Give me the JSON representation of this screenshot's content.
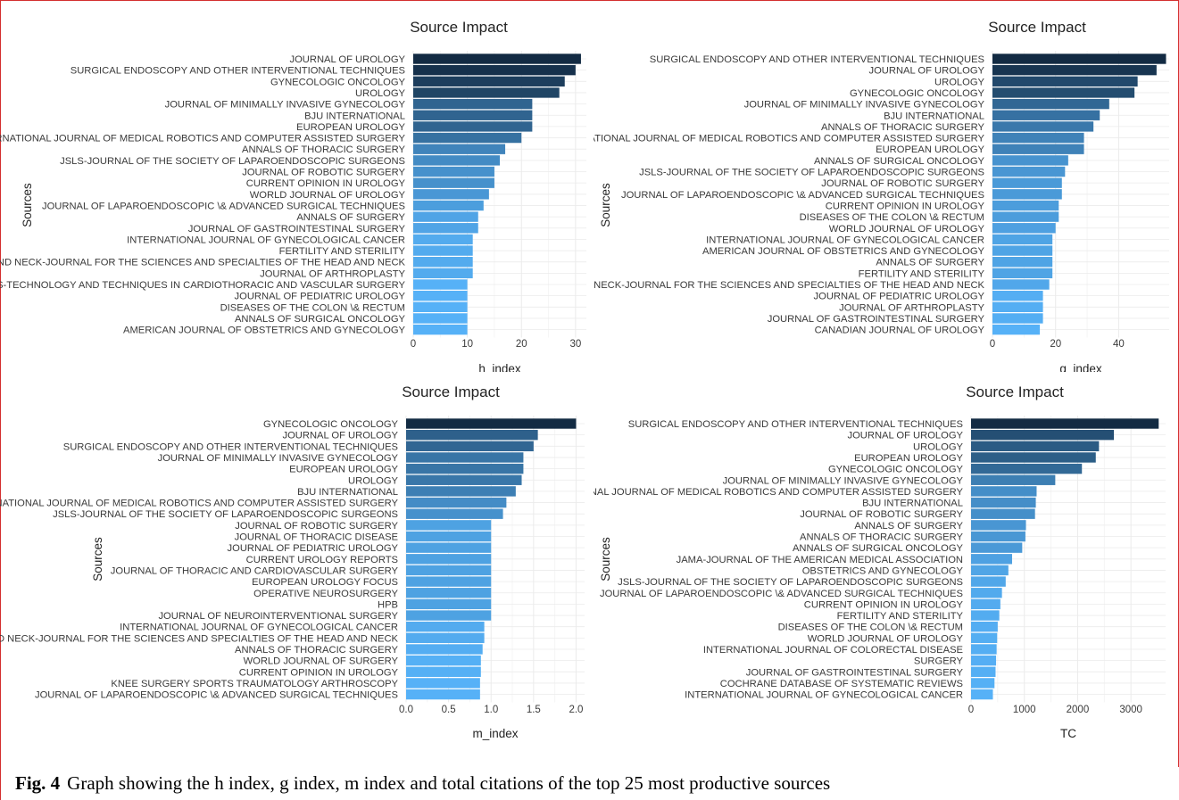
{
  "caption": {
    "label": "Fig. 4",
    "text": "Graph showing the h index, g index, m index and total citations of the top 25 most productive sources"
  },
  "colors": {
    "high": "#132b43",
    "low": "#56b1f7",
    "grid": "#ebebeb",
    "text": "#3a3a3a"
  },
  "chart_data": [
    {
      "type": "bar",
      "orientation": "horizontal",
      "title": "Source Impact",
      "xlabel": "h_index",
      "ylabel": "Sources",
      "xlim": [
        0,
        32
      ],
      "xticks": [
        0,
        10,
        20,
        30
      ],
      "grid": true,
      "categories": [
        "JOURNAL OF UROLOGY",
        "SURGICAL ENDOSCOPY AND OTHER INTERVENTIONAL TECHNIQUES",
        "GYNECOLOGIC ONCOLOGY",
        "UROLOGY",
        "JOURNAL OF MINIMALLY INVASIVE GYNECOLOGY",
        "BJU INTERNATIONAL",
        "EUROPEAN UROLOGY",
        "INTERNATIONAL JOURNAL OF MEDICAL ROBOTICS AND COMPUTER ASSISTED SURGERY",
        "ANNALS OF THORACIC SURGERY",
        "JSLS-JOURNAL OF THE SOCIETY OF LAPAROENDOSCOPIC SURGEONS",
        "JOURNAL OF ROBOTIC SURGERY",
        "CURRENT OPINION IN UROLOGY",
        "WORLD JOURNAL OF UROLOGY",
        "JOURNAL OF LAPAROENDOSCOPIC \\& ADVANCED SURGICAL TECHNIQUES",
        "ANNALS OF SURGERY",
        "JOURNAL OF GASTROINTESTINAL SURGERY",
        "INTERNATIONAL JOURNAL OF GYNECOLOGICAL CANCER",
        "FERTILITY AND STERILITY",
        "HEAD AND NECK-JOURNAL FOR THE SCIENCES AND SPECIALTIES OF THE HEAD AND NECK",
        "JOURNAL OF ARTHROPLASTY",
        "INNOVATIONS-TECHNOLOGY AND TECHNIQUES IN CARDIOTHORACIC AND VASCULAR SURGERY",
        "JOURNAL OF PEDIATRIC UROLOGY",
        "DISEASES OF THE COLON \\& RECTUM",
        "ANNALS OF SURGICAL ONCOLOGY",
        "AMERICAN JOURNAL OF OBSTETRICS AND GYNECOLOGY"
      ],
      "values": [
        31,
        30,
        28,
        27,
        22,
        22,
        22,
        20,
        17,
        16,
        15,
        15,
        14,
        13,
        12,
        12,
        11,
        11,
        11,
        11,
        10,
        10,
        10,
        10,
        10
      ]
    },
    {
      "type": "bar",
      "orientation": "horizontal",
      "title": "Source Impact",
      "xlabel": "g_index",
      "ylabel": "Sources",
      "xlim": [
        0,
        56
      ],
      "xticks": [
        0,
        20,
        40
      ],
      "grid": true,
      "categories": [
        "SURGICAL ENDOSCOPY AND OTHER INTERVENTIONAL TECHNIQUES",
        "JOURNAL OF UROLOGY",
        "UROLOGY",
        "GYNECOLOGIC ONCOLOGY",
        "JOURNAL OF MINIMALLY INVASIVE GYNECOLOGY",
        "BJU INTERNATIONAL",
        "ANNALS OF THORACIC SURGERY",
        "INTERNATIONAL JOURNAL OF MEDICAL ROBOTICS AND COMPUTER ASSISTED SURGERY",
        "EUROPEAN UROLOGY",
        "ANNALS OF SURGICAL ONCOLOGY",
        "JSLS-JOURNAL OF THE SOCIETY OF LAPAROENDOSCOPIC SURGEONS",
        "JOURNAL OF ROBOTIC SURGERY",
        "JOURNAL OF LAPAROENDOSCOPIC \\& ADVANCED SURGICAL TECHNIQUES",
        "CURRENT OPINION IN UROLOGY",
        "DISEASES OF THE COLON \\& RECTUM",
        "WORLD JOURNAL OF UROLOGY",
        "INTERNATIONAL JOURNAL OF GYNECOLOGICAL CANCER",
        "AMERICAN JOURNAL OF OBSTETRICS AND GYNECOLOGY",
        "ANNALS OF SURGERY",
        "FERTILITY AND STERILITY",
        "HEAD AND NECK-JOURNAL FOR THE SCIENCES AND SPECIALTIES OF THE HEAD AND NECK",
        "JOURNAL OF PEDIATRIC UROLOGY",
        "JOURNAL OF ARTHROPLASTY",
        "JOURNAL OF GASTROINTESTINAL SURGERY",
        "CANADIAN JOURNAL OF UROLOGY"
      ],
      "values": [
        55,
        52,
        46,
        45,
        37,
        34,
        32,
        29,
        29,
        24,
        23,
        22,
        22,
        21,
        21,
        20,
        19,
        19,
        19,
        19,
        18,
        16,
        16,
        16,
        15
      ]
    },
    {
      "type": "bar",
      "orientation": "horizontal",
      "title": "Source Impact",
      "xlabel": "m_index",
      "ylabel": "Sources",
      "xlim": [
        0,
        2.1
      ],
      "xticks": [
        0.0,
        0.5,
        1.0,
        1.5,
        2.0
      ],
      "grid": true,
      "categories": [
        "GYNECOLOGIC ONCOLOGY",
        "JOURNAL OF UROLOGY",
        "SURGICAL ENDOSCOPY AND OTHER INTERVENTIONAL TECHNIQUES",
        "JOURNAL OF MINIMALLY INVASIVE GYNECOLOGY",
        "EUROPEAN UROLOGY",
        "UROLOGY",
        "BJU INTERNATIONAL",
        "INTERNATIONAL JOURNAL OF MEDICAL ROBOTICS AND COMPUTER ASSISTED SURGERY",
        "JSLS-JOURNAL OF THE SOCIETY OF LAPAROENDOSCOPIC SURGEONS",
        "JOURNAL OF ROBOTIC SURGERY",
        "JOURNAL OF THORACIC DISEASE",
        "JOURNAL OF PEDIATRIC UROLOGY",
        "CURRENT UROLOGY REPORTS",
        "JOURNAL OF THORACIC AND CARDIOVASCULAR SURGERY",
        "EUROPEAN UROLOGY FOCUS",
        "OPERATIVE NEUROSURGERY",
        "HPB",
        "JOURNAL OF NEUROINTERVENTIONAL SURGERY",
        "INTERNATIONAL JOURNAL OF GYNECOLOGICAL CANCER",
        "HEAD AND NECK-JOURNAL FOR THE SCIENCES AND SPECIALTIES OF THE HEAD AND NECK",
        "ANNALS OF THORACIC SURGERY",
        "WORLD JOURNAL OF SURGERY",
        "CURRENT OPINION IN UROLOGY",
        "KNEE SURGERY SPORTS TRAUMATOLOGY ARTHROSCOPY",
        "JOURNAL OF LAPAROENDOSCOPIC \\& ADVANCED SURGICAL TECHNIQUES"
      ],
      "values": [
        2.0,
        1.55,
        1.5,
        1.38,
        1.38,
        1.36,
        1.29,
        1.18,
        1.14,
        1.0,
        1.0,
        1.0,
        1.0,
        1.0,
        1.0,
        1.0,
        1.0,
        1.0,
        0.92,
        0.92,
        0.9,
        0.88,
        0.88,
        0.87,
        0.87
      ]
    },
    {
      "type": "bar",
      "orientation": "horizontal",
      "title": "Source Impact",
      "xlabel": "TC",
      "ylabel": "Sources",
      "xlim": [
        0,
        3650
      ],
      "xticks": [
        0,
        1000,
        2000,
        3000
      ],
      "grid": true,
      "categories": [
        "SURGICAL ENDOSCOPY AND OTHER INTERVENTIONAL TECHNIQUES",
        "JOURNAL OF UROLOGY",
        "UROLOGY",
        "EUROPEAN UROLOGY",
        "GYNECOLOGIC ONCOLOGY",
        "JOURNAL OF MINIMALLY INVASIVE GYNECOLOGY",
        "INTERNATIONAL JOURNAL OF MEDICAL ROBOTICS AND COMPUTER ASSISTED SURGERY",
        "BJU INTERNATIONAL",
        "JOURNAL OF ROBOTIC SURGERY",
        "ANNALS OF SURGERY",
        "ANNALS OF THORACIC SURGERY",
        "ANNALS OF SURGICAL ONCOLOGY",
        "JAMA-JOURNAL OF THE AMERICAN MEDICAL ASSOCIATION",
        "OBSTETRICS AND GYNECOLOGY",
        "JSLS-JOURNAL OF THE SOCIETY OF LAPAROENDOSCOPIC SURGEONS",
        "JOURNAL OF LAPAROENDOSCOPIC \\& ADVANCED SURGICAL TECHNIQUES",
        "CURRENT OPINION IN UROLOGY",
        "FERTILITY AND STERILITY",
        "DISEASES OF THE COLON \\& RECTUM",
        "WORLD JOURNAL OF UROLOGY",
        "INTERNATIONAL JOURNAL OF COLORECTAL DISEASE",
        "SURGERY",
        "JOURNAL OF GASTROINTESTINAL SURGERY",
        "COCHRANE DATABASE OF SYSTEMATIC REVIEWS",
        "INTERNATIONAL JOURNAL OF GYNECOLOGICAL CANCER"
      ],
      "values": [
        3520,
        2680,
        2400,
        2340,
        2080,
        1580,
        1230,
        1215,
        1200,
        1030,
        1020,
        960,
        770,
        700,
        650,
        580,
        550,
        530,
        500,
        490,
        480,
        470,
        460,
        440,
        410
      ]
    }
  ]
}
